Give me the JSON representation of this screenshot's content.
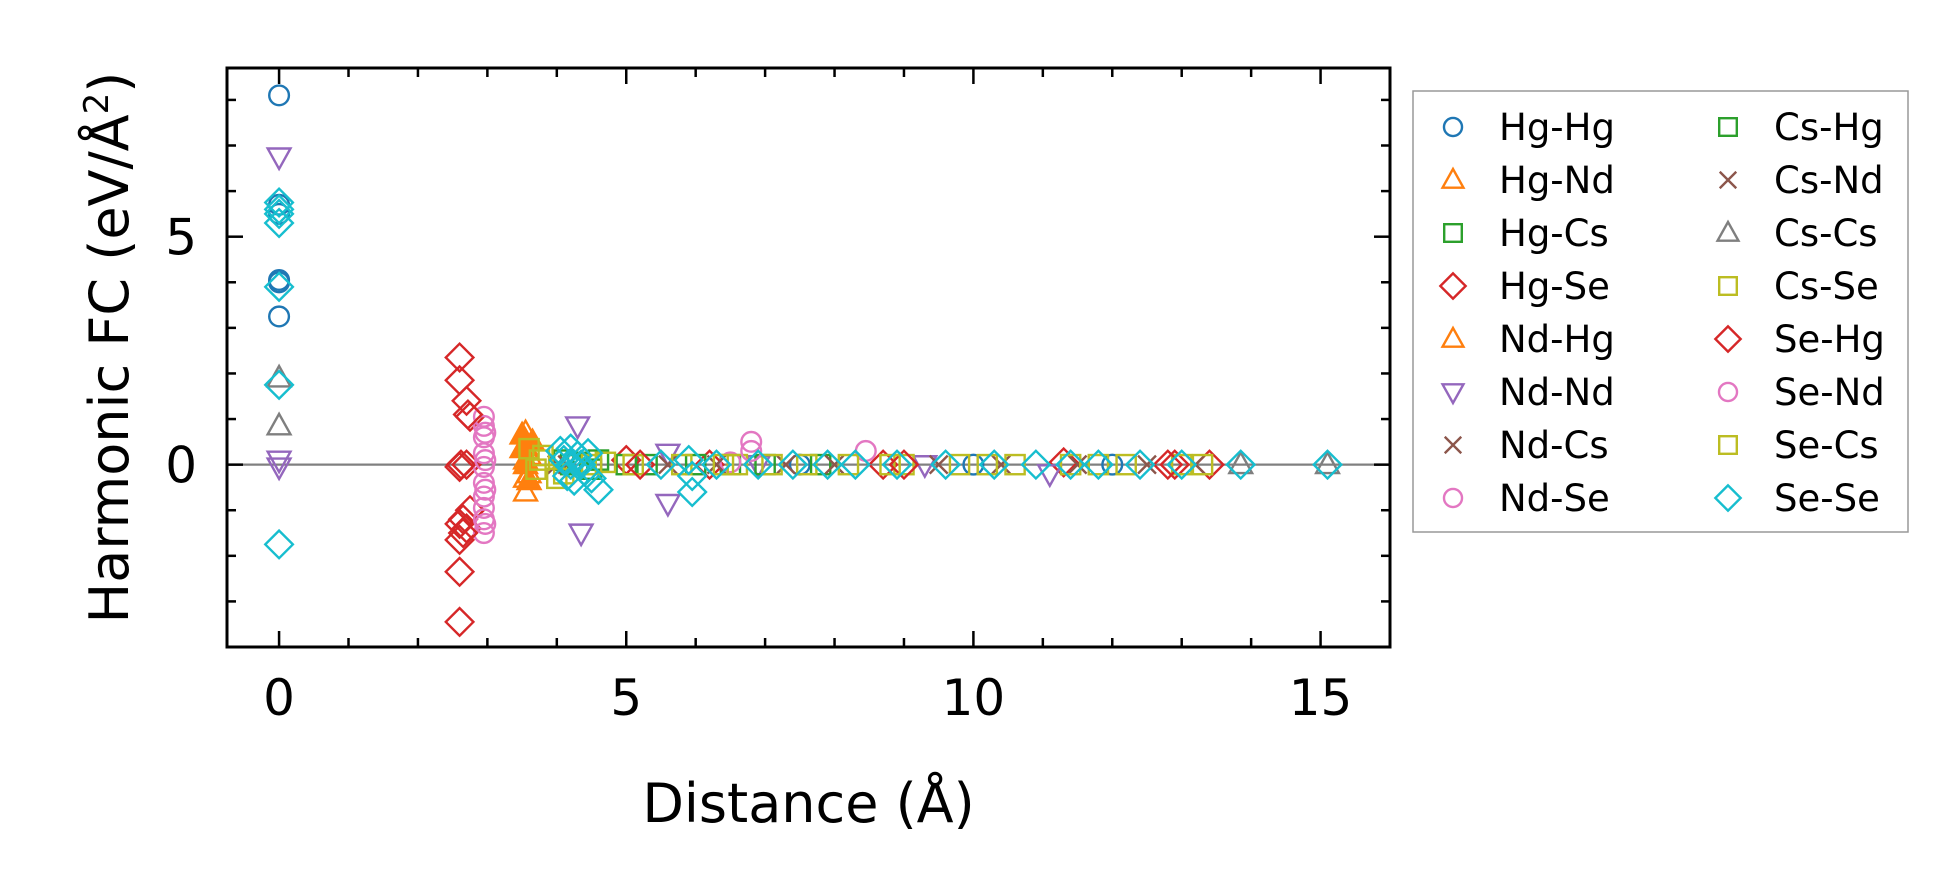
{
  "chart_data": {
    "type": "scatter",
    "title": "",
    "xlabel": "Distance (Å)",
    "ylabel": "Harmonic FC (eV/Å",
    "ylabel_sup": "2",
    "ylabel_end": ")",
    "xlim": [
      -0.75,
      16
    ],
    "ylim": [
      -4.0,
      8.7
    ],
    "xticks": [
      0,
      5,
      10,
      15
    ],
    "xtick_labels": [
      "0",
      "5",
      "10",
      "15"
    ],
    "yticks": [
      0,
      5
    ],
    "ytick_labels": [
      "0",
      "5"
    ],
    "reference_line_y": 0,
    "legend_position": "right",
    "colors": {
      "blue": "#1f77b4",
      "orange": "#ff7f0e",
      "green": "#2ca02c",
      "red": "#d62728",
      "purple": "#9467bd",
      "brown": "#8c564b",
      "pink": "#e377c2",
      "gray": "#7f7f7f",
      "olive": "#bcbd22",
      "cyan": "#17becf"
    },
    "series": [
      {
        "name": "Hg-Hg",
        "marker": "circle",
        "color": "#1f77b4",
        "filled": false,
        "points": [
          [
            0,
            8.1
          ],
          [
            0,
            5.7
          ],
          [
            0,
            5.5
          ],
          [
            0,
            4.05
          ],
          [
            0,
            4.0
          ],
          [
            0,
            3.25
          ],
          [
            7.5,
            0.0
          ],
          [
            10.0,
            0.0
          ],
          [
            12.0,
            0.0
          ]
        ]
      },
      {
        "name": "Hg-Nd",
        "marker": "triangle-up",
        "color": "#ff7f0e",
        "filled": false,
        "points": [
          [
            3.55,
            0.7
          ],
          [
            3.55,
            0.4
          ],
          [
            3.55,
            0.1
          ],
          [
            3.55,
            -0.3
          ],
          [
            3.55,
            -0.6
          ],
          [
            3.6,
            0.2
          ],
          [
            3.6,
            -0.2
          ]
        ]
      },
      {
        "name": "Hg-Cs",
        "marker": "square",
        "color": "#2ca02c",
        "filled": false,
        "points": [
          [
            4.1,
            0.1
          ],
          [
            4.2,
            0.0
          ],
          [
            4.5,
            -0.1
          ],
          [
            5.3,
            0.0
          ],
          [
            6.5,
            0.0
          ],
          [
            7.8,
            0.0
          ]
        ]
      },
      {
        "name": "Hg-Se",
        "marker": "diamond",
        "color": "#d62728",
        "filled": false,
        "points": [
          [
            2.6,
            2.35
          ],
          [
            2.6,
            1.85
          ],
          [
            2.6,
            -0.05
          ],
          [
            2.6,
            -1.3
          ],
          [
            2.6,
            -1.65
          ],
          [
            2.6,
            -2.35
          ],
          [
            2.6,
            -3.45
          ],
          [
            2.65,
            -1.2
          ],
          [
            2.7,
            1.4
          ],
          [
            2.75,
            1.05
          ],
          [
            2.75,
            -1.0
          ],
          [
            2.7,
            -1.4
          ],
          [
            2.7,
            0.0
          ],
          [
            5.0,
            0.1
          ],
          [
            6.2,
            0.0
          ],
          [
            8.7,
            0.0
          ],
          [
            11.3,
            0.05
          ],
          [
            12.9,
            0.0
          ],
          [
            13.4,
            0.0
          ]
        ]
      },
      {
        "name": "Nd-Hg",
        "marker": "triangle-up",
        "color": "#ff7f0e",
        "filled": true,
        "points": [
          [
            3.5,
            0.65
          ],
          [
            3.5,
            0.35
          ],
          [
            3.55,
            0.0
          ],
          [
            3.6,
            -0.35
          ],
          [
            3.65,
            0.5
          ]
        ]
      },
      {
        "name": "Nd-Nd",
        "marker": "triangle-down",
        "color": "#9467bd",
        "filled": false,
        "points": [
          [
            0,
            6.75
          ],
          [
            0,
            0.1
          ],
          [
            0,
            -0.05
          ],
          [
            4.3,
            0.85
          ],
          [
            4.35,
            -1.5
          ],
          [
            5.6,
            -0.85
          ],
          [
            5.6,
            0.25
          ],
          [
            6.9,
            0.0
          ],
          [
            9.3,
            0.0
          ],
          [
            11.1,
            -0.2
          ]
        ]
      },
      {
        "name": "Nd-Cs",
        "marker": "x",
        "color": "#8c564b",
        "filled": false,
        "points": [
          [
            4.15,
            0.0
          ],
          [
            5.6,
            0.0
          ],
          [
            7.3,
            0.0
          ],
          [
            9.5,
            0.0
          ],
          [
            11.5,
            0.0
          ],
          [
            13.2,
            0.0
          ]
        ]
      },
      {
        "name": "Nd-Se",
        "marker": "circle",
        "color": "#e377c2",
        "filled": false,
        "points": [
          [
            2.95,
            1.05
          ],
          [
            2.95,
            0.85
          ],
          [
            2.95,
            0.6
          ],
          [
            2.95,
            0.25
          ],
          [
            2.95,
            -0.05
          ],
          [
            2.95,
            -0.4
          ],
          [
            2.95,
            -0.7
          ],
          [
            2.95,
            -0.95
          ],
          [
            2.95,
            -1.2
          ],
          [
            2.95,
            -1.5
          ],
          [
            6.8,
            0.5
          ],
          [
            8.45,
            0.3
          ],
          [
            6.5,
            0.05
          ]
        ]
      },
      {
        "name": "Cs-Hg",
        "marker": "square",
        "color": "#2ca02c",
        "filled": false,
        "points": [
          [
            4.3,
            0.05
          ],
          [
            4.6,
            0.1
          ],
          [
            5.0,
            0.0
          ],
          [
            6.0,
            0.0
          ],
          [
            7.0,
            0.0
          ]
        ]
      },
      {
        "name": "Cs-Nd",
        "marker": "x",
        "color": "#8c564b",
        "filled": false,
        "points": [
          [
            4.0,
            0.0
          ],
          [
            6.3,
            0.0
          ],
          [
            8.0,
            0.0
          ],
          [
            10.4,
            0.0
          ],
          [
            12.5,
            0.0
          ]
        ]
      },
      {
        "name": "Cs-Cs",
        "marker": "triangle-up",
        "color": "#7f7f7f",
        "filled": false,
        "points": [
          [
            0,
            1.9
          ],
          [
            0,
            0.85
          ],
          [
            13.85,
            0.0
          ],
          [
            15.1,
            0.0
          ]
        ]
      },
      {
        "name": "Cs-Se",
        "marker": "square",
        "color": "#bcbd22",
        "filled": false,
        "points": [
          [
            3.6,
            0.35
          ],
          [
            3.7,
            -0.1
          ],
          [
            3.8,
            0.2
          ],
          [
            4.0,
            -0.3
          ],
          [
            4.5,
            0.0
          ],
          [
            5.1,
            0.0
          ],
          [
            5.8,
            0.0
          ],
          [
            6.6,
            0.0
          ],
          [
            7.1,
            0.0
          ],
          [
            8.2,
            0.0
          ],
          [
            9.0,
            0.0
          ],
          [
            9.8,
            0.0
          ],
          [
            10.6,
            0.0
          ],
          [
            11.4,
            0.0
          ],
          [
            12.2,
            0.0
          ],
          [
            13.0,
            0.0
          ]
        ]
      },
      {
        "name": "Se-Hg",
        "marker": "diamond",
        "color": "#d62728",
        "filled": false,
        "points": [
          [
            2.62,
            0.0
          ],
          [
            2.65,
            -1.5
          ],
          [
            2.72,
            1.1
          ],
          [
            5.2,
            0.0
          ],
          [
            9.0,
            0.0
          ],
          [
            12.8,
            0.0
          ]
        ]
      },
      {
        "name": "Se-Nd",
        "marker": "circle",
        "color": "#e377c2",
        "filled": false,
        "points": [
          [
            2.97,
            0.7
          ],
          [
            2.97,
            0.1
          ],
          [
            2.97,
            -0.55
          ],
          [
            2.97,
            -1.3
          ],
          [
            6.8,
            0.3
          ]
        ]
      },
      {
        "name": "Se-Cs",
        "marker": "square",
        "color": "#bcbd22",
        "filled": false,
        "points": [
          [
            3.75,
            0.1
          ],
          [
            4.1,
            -0.2
          ],
          [
            4.7,
            0.05
          ],
          [
            6.4,
            0.0
          ],
          [
            7.6,
            0.0
          ],
          [
            8.8,
            0.0
          ],
          [
            10.2,
            0.0
          ],
          [
            11.8,
            0.0
          ],
          [
            13.3,
            0.0
          ]
        ]
      },
      {
        "name": "Se-Se",
        "marker": "diamond",
        "color": "#17becf",
        "filled": false,
        "points": [
          [
            0,
            5.75
          ],
          [
            0,
            5.6
          ],
          [
            0,
            5.5
          ],
          [
            0,
            5.3
          ],
          [
            0,
            3.9
          ],
          [
            0,
            1.75
          ],
          [
            0,
            -1.75
          ],
          [
            4.1,
            0.1
          ],
          [
            4.15,
            -0.25
          ],
          [
            4.2,
            0.35
          ],
          [
            4.25,
            -0.35
          ],
          [
            4.3,
            0.2
          ],
          [
            4.35,
            0.0
          ],
          [
            4.4,
            -0.15
          ],
          [
            4.45,
            0.25
          ],
          [
            4.5,
            -0.3
          ],
          [
            4.6,
            -0.55
          ],
          [
            4.05,
            0.3
          ],
          [
            4.2,
            0.0
          ],
          [
            5.9,
            0.1
          ],
          [
            5.95,
            -0.6
          ],
          [
            5.95,
            -0.25
          ],
          [
            5.5,
            0.0
          ],
          [
            6.3,
            0.0
          ],
          [
            6.9,
            0.0
          ],
          [
            7.4,
            0.0
          ],
          [
            7.9,
            0.0
          ],
          [
            8.3,
            0.0
          ],
          [
            8.9,
            0.0
          ],
          [
            9.6,
            0.0
          ],
          [
            10.3,
            0.0
          ],
          [
            10.9,
            0.0
          ],
          [
            11.4,
            0.0
          ],
          [
            11.8,
            0.0
          ],
          [
            12.4,
            0.0
          ],
          [
            13.0,
            0.0
          ],
          [
            13.85,
            0.0
          ],
          [
            15.1,
            0.0
          ]
        ]
      }
    ]
  }
}
